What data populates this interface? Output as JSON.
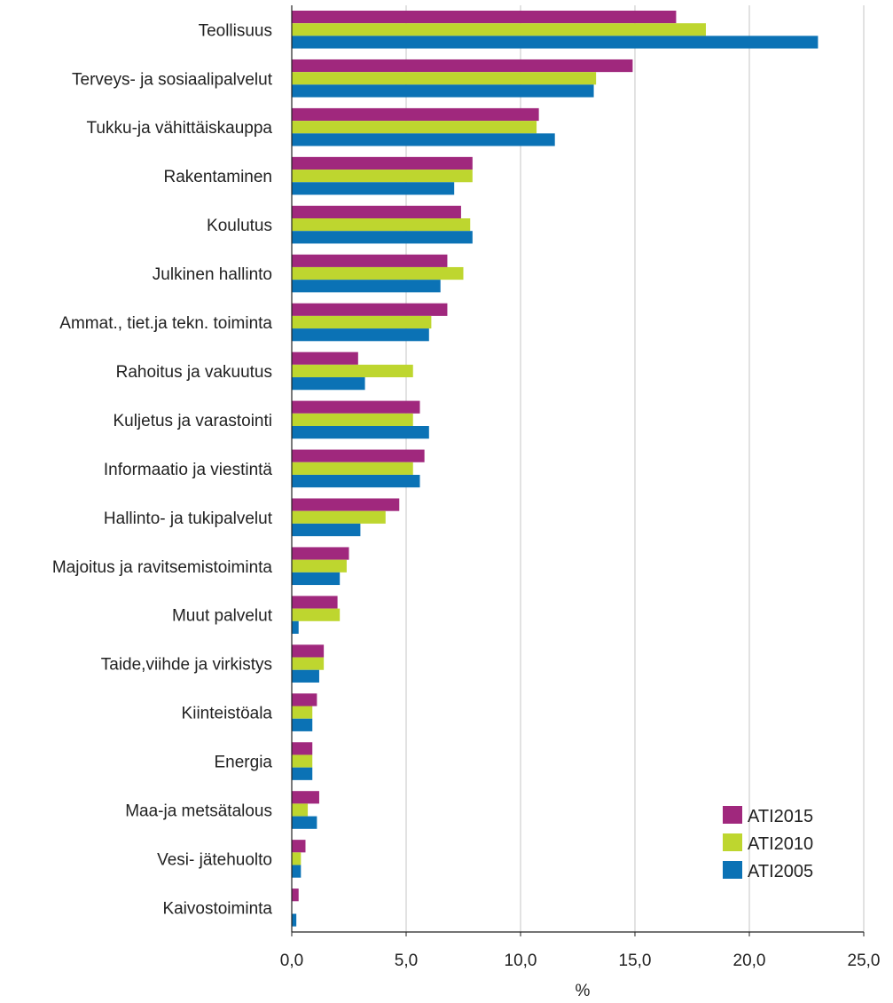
{
  "chart_data": {
    "type": "bar",
    "orientation": "horizontal",
    "title": "",
    "xlabel": "%",
    "ylabel": "",
    "xlim": [
      0,
      25
    ],
    "xticks": [
      0,
      5,
      10,
      15,
      20,
      25
    ],
    "xtick_labels": [
      "0,0",
      "5,0",
      "10,0",
      "15,0",
      "20,0",
      "25,0"
    ],
    "grid": "vertical",
    "legend_position": "bottom-right",
    "categories": [
      "Teollisuus",
      "Terveys- ja sosiaalipalvelut",
      "Tukku-ja vähittäiskauppa",
      "Rakentaminen",
      "Koulutus",
      "Julkinen hallinto",
      "Ammat., tiet.ja tekn. toiminta",
      "Rahoitus ja vakuutus",
      "Kuljetus ja varastointi",
      "Informaatio ja viestintä",
      "Hallinto- ja tukipalvelut",
      "Majoitus ja ravitsemistoiminta",
      "Muut palvelut",
      "Taide,viihde ja virkistys",
      "Kiinteistöala",
      "Energia",
      "Maa-ja metsätalous",
      "Vesi- jätehuolto",
      "Kaivostoiminta"
    ],
    "series": [
      {
        "name": "ATI2015",
        "color": "#a0287d",
        "values": [
          16.8,
          14.9,
          10.8,
          7.9,
          7.4,
          6.8,
          6.8,
          2.9,
          5.6,
          5.8,
          4.7,
          2.5,
          2.0,
          1.4,
          1.1,
          0.9,
          1.2,
          0.6,
          0.3
        ]
      },
      {
        "name": "ATI2010",
        "color": "#bed62f",
        "values": [
          18.1,
          13.3,
          10.7,
          7.9,
          7.8,
          7.5,
          6.1,
          5.3,
          5.3,
          5.3,
          4.1,
          2.4,
          2.1,
          1.4,
          0.9,
          0.9,
          0.7,
          0.4,
          0.0
        ]
      },
      {
        "name": "ATI2005",
        "color": "#0b72b5",
        "values": [
          23.0,
          13.2,
          11.5,
          7.1,
          7.9,
          6.5,
          6.0,
          3.2,
          6.0,
          5.6,
          3.0,
          2.1,
          0.3,
          1.2,
          0.9,
          0.9,
          1.1,
          0.4,
          0.2
        ]
      }
    ]
  }
}
